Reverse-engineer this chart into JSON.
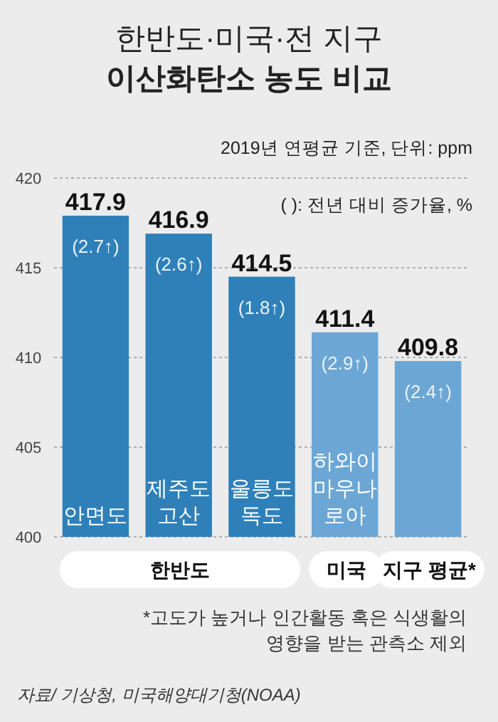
{
  "chart_data": {
    "type": "bar",
    "title": "한반도·미국·전 지구\n이산화탄소 농도 비교",
    "subtitle": "2019년 연평균 기준, 단위:  ppm",
    "categories": [
      "안면도",
      "제주도\n고산",
      "울릉도\n독도",
      "하와이\n마우나\n로아",
      null
    ],
    "values": [
      417.9,
      416.9,
      414.5,
      411.4,
      409.8
    ],
    "colors": [
      "#2f80b9",
      "#2f80b9",
      "#2f80b9",
      "#6ba6d5",
      "#6ba6d5"
    ],
    "data_labels": true,
    "ylim": [
      400,
      420
    ],
    "yticks": [
      400,
      405,
      410,
      415,
      420
    ],
    "grid": "y",
    "annotations": [
      "( ): 전년 대비 증가율, %",
      {
        "text": "(2.7↑)",
        "x": "안면도",
        "y": 417.9
      },
      {
        "text": "(2.6↑)",
        "x": "제주도\n고산",
        "y": 416.9
      },
      {
        "text": "(1.8↑)",
        "x": "울릉도\n독도",
        "y": 414.5
      },
      {
        "text": "(2.9↑)",
        "x": "하와이\n마우나\n로아",
        "y": 411.4
      },
      {
        "text": "(2.4↑)",
        "y": 409.8
      },
      "한반도",
      "미국",
      "지구 평균*",
      "*고도가 높거나 인간활동 혹은 식생활의\n영향을 받는 관측소 제외",
      "자료/ 기상청, 미국해양대기청(NOAA)"
    ]
  }
}
